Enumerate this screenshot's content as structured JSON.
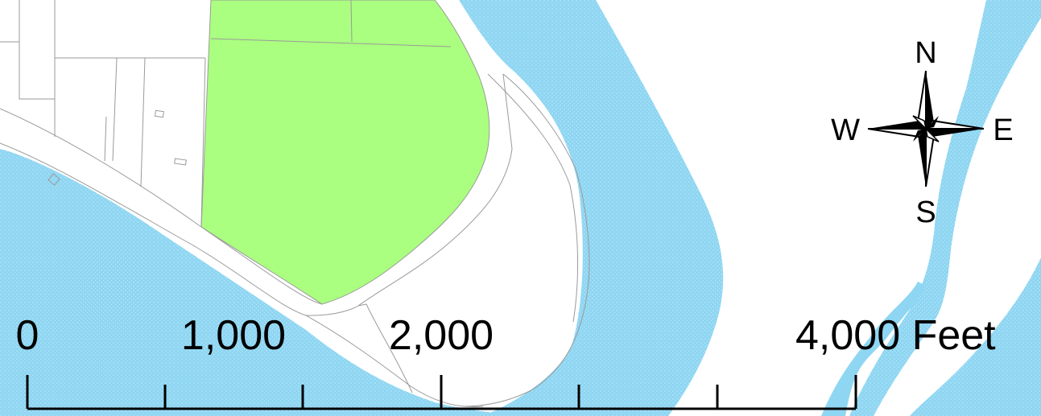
{
  "map": {
    "colors": {
      "water": "#8fd6f2",
      "park": "#aaff80",
      "land": "#ffffff",
      "parcel_line": "#9a9a9a",
      "ink": "#000000"
    },
    "compass": {
      "north": "N",
      "south": "S",
      "east": "E",
      "west": "W",
      "icon": "north-arrow-compass-rose"
    },
    "scale_bar": {
      "labels": [
        "0",
        "1,000",
        "2,000",
        "4,000 Feet"
      ],
      "unit": "Feet"
    }
  }
}
